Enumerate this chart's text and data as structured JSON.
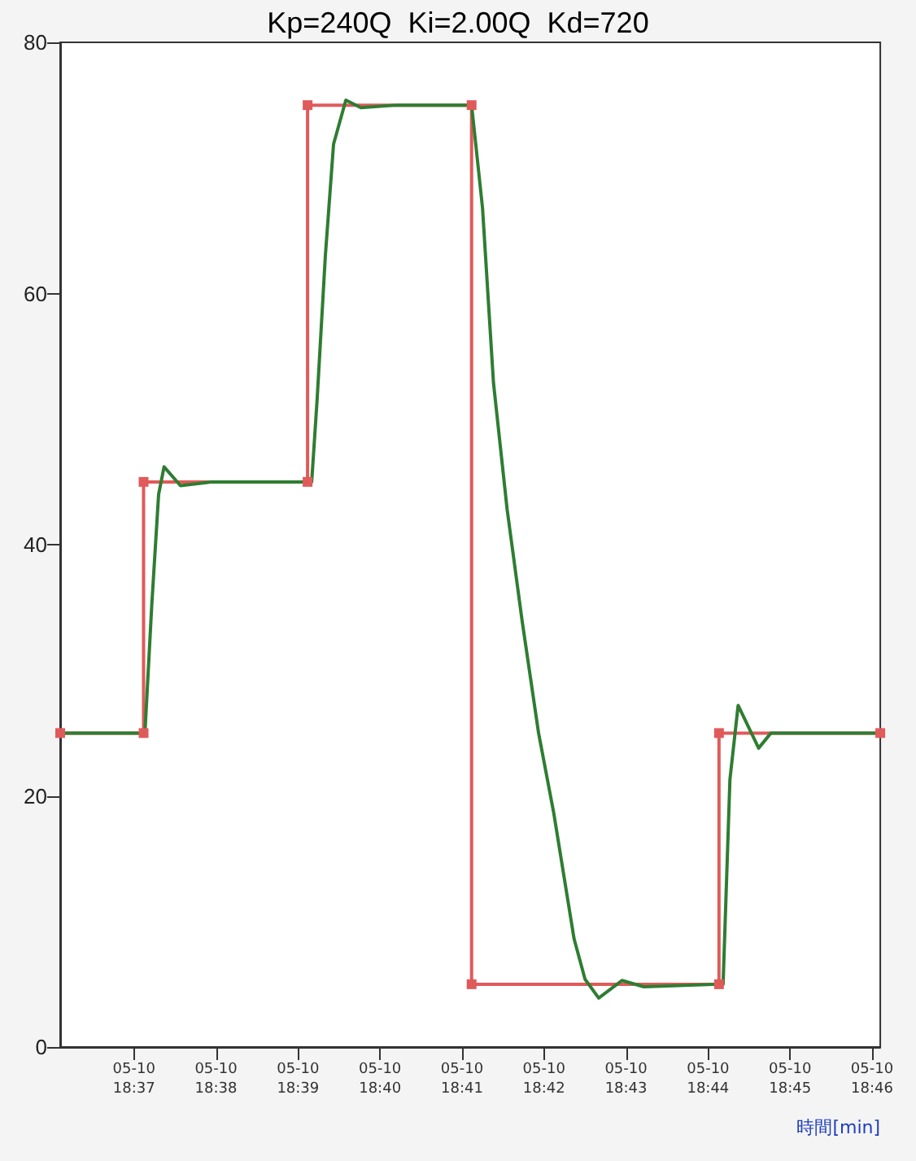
{
  "chart_data": {
    "type": "line",
    "title": "Kp=240Q  Ki=2.00Q  Kd=720",
    "xlabel": "時間[min]",
    "xlim": [
      "--05-10T18:36:06",
      "--05-10T18:46:06"
    ],
    "ylim": [
      0,
      80
    ],
    "yticks": [
      0,
      20,
      40,
      60,
      80
    ],
    "xticks": [
      {
        "value": "--05-10T18:37",
        "label": "05-10 18:37"
      },
      {
        "value": "--05-10T18:38",
        "label": "05-10 18:38"
      },
      {
        "value": "--05-10T18:39",
        "label": "05-10 18:39"
      },
      {
        "value": "--05-10T18:40",
        "label": "05-10 18:40"
      },
      {
        "value": "--05-10T18:41",
        "label": "05-10 18:41"
      },
      {
        "value": "--05-10T18:42",
        "label": "05-10 18:42"
      },
      {
        "value": "--05-10T18:43",
        "label": "05-10 18:43"
      },
      {
        "value": "--05-10T18:44",
        "label": "05-10 18:44"
      },
      {
        "value": "--05-10T18:45",
        "label": "05-10 18:45"
      },
      {
        "value": "--05-10T18:46",
        "label": "05-10 18:46"
      }
    ],
    "series": [
      {
        "color": "#e05a5a",
        "marker": "square",
        "x": [
          "--05-10T18:36:06",
          "--05-10T18:37:07",
          "--05-10T18:37:07",
          "--05-10T18:39:07",
          "--05-10T18:39:07",
          "--05-10T18:41:07",
          "--05-10T18:41:07",
          "--05-10T18:44:08",
          "--05-10T18:44:08",
          "--05-10T18:46:06"
        ],
        "values": [
          25,
          25,
          45,
          45,
          75,
          75,
          5,
          5,
          25,
          25
        ]
      },
      {
        "color": "#2e7d32",
        "marker": "none",
        "x": [
          "--05-10T18:36:06",
          "--05-10T18:37:07",
          "--05-10T18:37:08",
          "--05-10T18:37:13",
          "--05-10T18:37:18",
          "--05-10T18:37:22",
          "--05-10T18:37:34",
          "--05-10T18:37:57",
          "--05-10T18:39:07",
          "--05-10T18:39:10",
          "--05-10T18:39:14",
          "--05-10T18:39:20",
          "--05-10T18:39:26",
          "--05-10T18:39:35",
          "--05-10T18:39:46",
          "--05-10T18:40:12",
          "--05-10T18:41:07",
          "--05-10T18:41:15",
          "--05-10T18:41:23",
          "--05-10T18:41:33",
          "--05-10T18:41:44",
          "--05-10T18:41:56",
          "--05-10T18:42:07",
          "--05-10T18:42:22",
          "--05-10T18:42:30",
          "--05-10T18:42:40",
          "--05-10T18:42:57",
          "--05-10T18:43:13",
          "--05-10T18:44:08",
          "--05-10T18:44:11",
          "--05-10T18:44:16",
          "--05-10T18:44:22",
          "--05-10T18:44:37",
          "--05-10T18:44:46",
          "--05-10T18:46:06"
        ],
        "values": [
          25,
          25,
          25,
          35.2,
          44,
          46.2,
          44.7,
          45,
          45,
          45,
          51.6,
          63,
          71.9,
          75.4,
          74.8,
          75,
          75,
          66.8,
          52.9,
          42.8,
          33.9,
          25,
          18.7,
          8.6,
          5.4,
          3.9,
          5.3,
          4.8,
          5,
          5,
          21.3,
          27.2,
          23.8,
          25,
          25
        ]
      }
    ]
  }
}
